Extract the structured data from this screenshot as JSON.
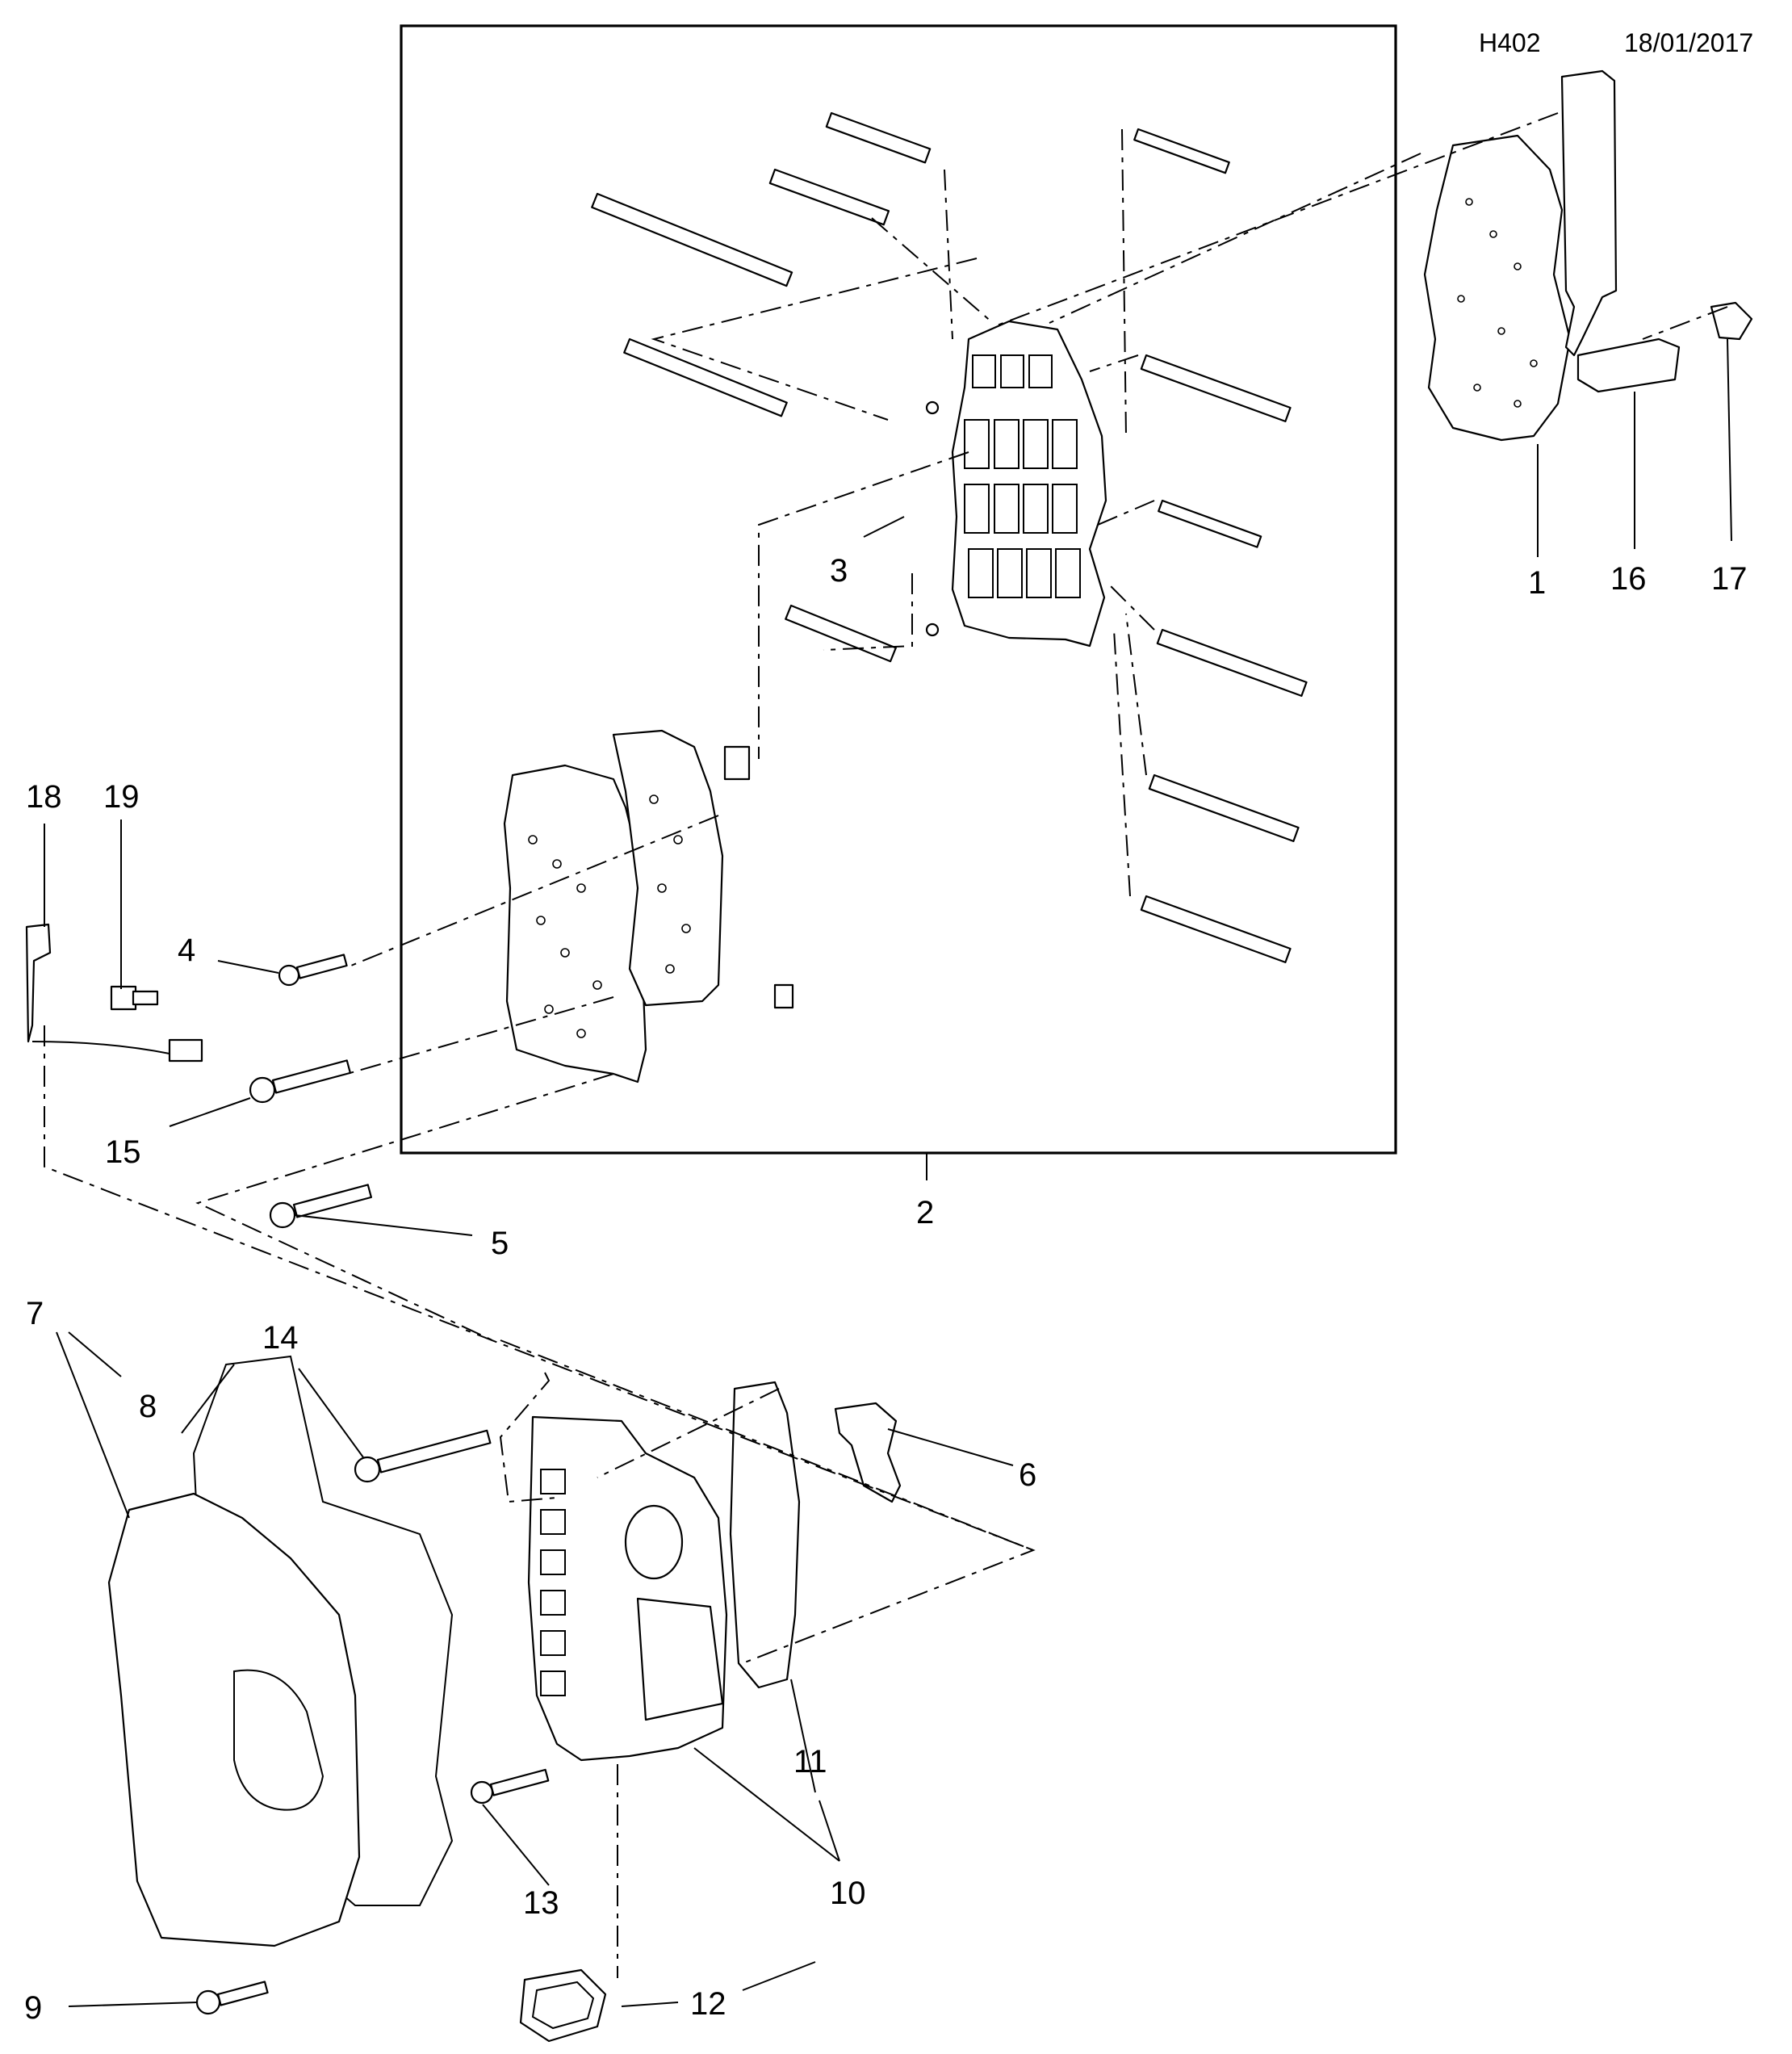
{
  "header": {
    "diagram_code": "H402",
    "date": "18/01/2017"
  },
  "callouts": [
    {
      "id": "1",
      "text": "1"
    },
    {
      "id": "2",
      "text": "2"
    },
    {
      "id": "3",
      "text": "3"
    },
    {
      "id": "4",
      "text": "4"
    },
    {
      "id": "5",
      "text": "5"
    },
    {
      "id": "6",
      "text": "6"
    },
    {
      "id": "7",
      "text": "7"
    },
    {
      "id": "8",
      "text": "8"
    },
    {
      "id": "9",
      "text": "9"
    },
    {
      "id": "10",
      "text": "10"
    },
    {
      "id": "11",
      "text": "11"
    },
    {
      "id": "12",
      "text": "12"
    },
    {
      "id": "13",
      "text": "13"
    },
    {
      "id": "14",
      "text": "14"
    },
    {
      "id": "15",
      "text": "15"
    },
    {
      "id": "16",
      "text": "16"
    },
    {
      "id": "17",
      "text": "17"
    },
    {
      "id": "18",
      "text": "18"
    },
    {
      "id": "19",
      "text": "19"
    }
  ]
}
